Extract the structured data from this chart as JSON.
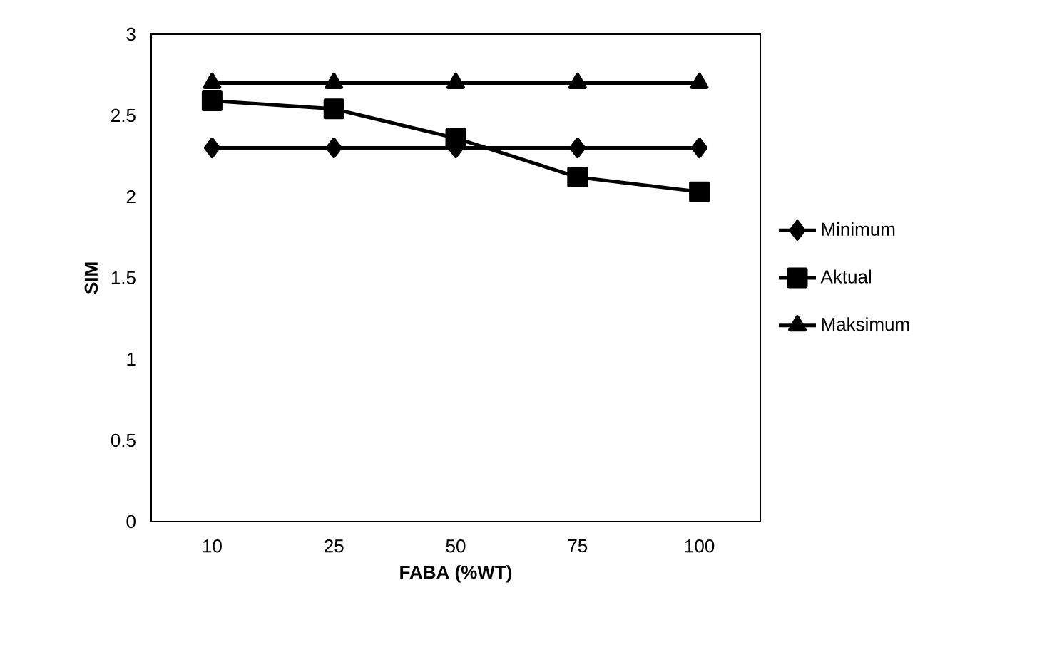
{
  "chart_data": {
    "type": "line",
    "xlabel": "FABA (%WT)",
    "ylabel": "SIM",
    "categories": [
      "10",
      "25",
      "50",
      "75",
      "100"
    ],
    "ylim": [
      0,
      3
    ],
    "yticks": [
      0,
      0.5,
      1,
      1.5,
      2,
      2.5,
      3
    ],
    "grid": false,
    "legend": "right",
    "line_style": "solid",
    "series": [
      {
        "name": "Minimum",
        "color": "#000000",
        "marker": "diamond",
        "values": [
          2.3,
          2.3,
          2.3,
          2.3,
          2.3
        ]
      },
      {
        "name": "Aktual",
        "color": "#000000",
        "marker": "square",
        "values": [
          2.59,
          2.54,
          2.36,
          2.12,
          2.03
        ]
      },
      {
        "name": "Maksimum",
        "color": "#000000",
        "marker": "triangle",
        "values": [
          2.7,
          2.7,
          2.7,
          2.7,
          2.7
        ]
      }
    ]
  }
}
